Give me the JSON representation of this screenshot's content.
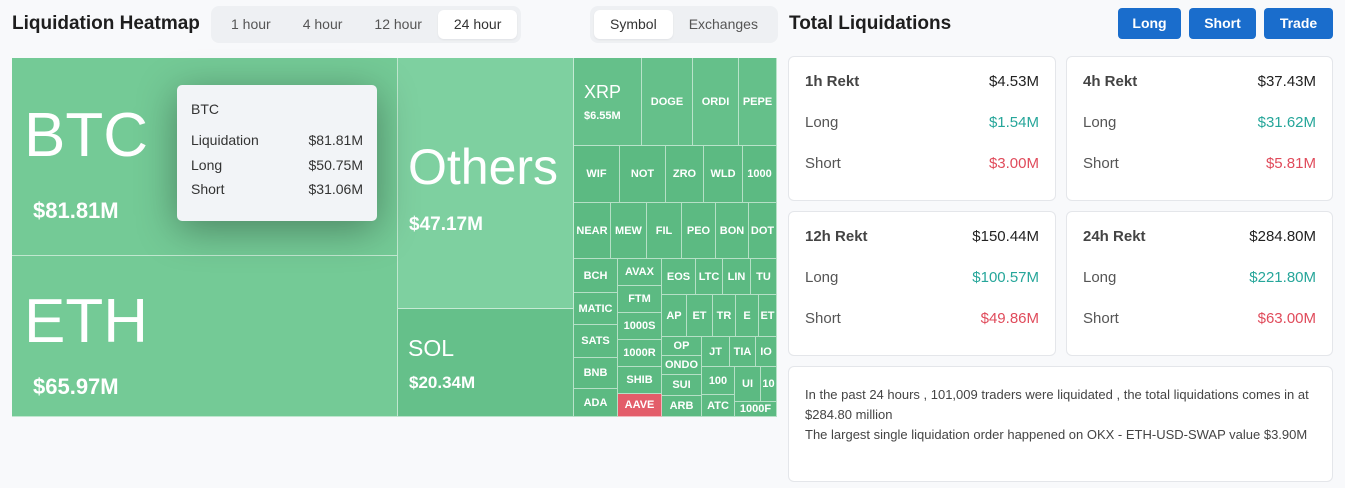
{
  "header": {
    "title": "Liquidation Heatmap",
    "time_options": [
      "1 hour",
      "4 hour",
      "12 hour",
      "24 hour"
    ],
    "active_time": "24 hour",
    "mode_options": [
      "Symbol",
      "Exchanges"
    ],
    "active_mode": "Symbol"
  },
  "heatmap": {
    "tiles": [
      {
        "name": "BTC",
        "value": "$81.81M"
      },
      {
        "name": "ETH",
        "value": "$65.97M"
      },
      {
        "name": "Others",
        "value": "$47.17M"
      },
      {
        "name": "SOL",
        "value": "$20.34M"
      },
      {
        "name": "XRP",
        "value": "$6.55M"
      },
      {
        "name": "DOGE"
      },
      {
        "name": "ORDI"
      },
      {
        "name": "PEPE"
      },
      {
        "name": "WIF"
      },
      {
        "name": "NOT"
      },
      {
        "name": "ZRO"
      },
      {
        "name": "WLD"
      },
      {
        "name": "1000"
      },
      {
        "name": "NEAR"
      },
      {
        "name": "MEW"
      },
      {
        "name": "FIL"
      },
      {
        "name": "PEO"
      },
      {
        "name": "BON"
      },
      {
        "name": "DOT"
      },
      {
        "name": "BCH"
      },
      {
        "name": "AVAX"
      },
      {
        "name": "EOS"
      },
      {
        "name": "LTC"
      },
      {
        "name": "LIN"
      },
      {
        "name": "TU"
      },
      {
        "name": "MATIC"
      },
      {
        "name": "FTM"
      },
      {
        "name": "AP"
      },
      {
        "name": "ET"
      },
      {
        "name": "TR"
      },
      {
        "name": "E"
      },
      {
        "name": "ET"
      },
      {
        "name": "1000S"
      },
      {
        "name": "SATS"
      },
      {
        "name": "1000R"
      },
      {
        "name": "OP"
      },
      {
        "name": "JT"
      },
      {
        "name": "TIA"
      },
      {
        "name": "IO"
      },
      {
        "name": "ONDO"
      },
      {
        "name": "BNB"
      },
      {
        "name": "SHIB"
      },
      {
        "name": "SUI"
      },
      {
        "name": "100"
      },
      {
        "name": "UI"
      },
      {
        "name": "10"
      },
      {
        "name": "ADA"
      },
      {
        "name": "AAVE"
      },
      {
        "name": "ARB"
      },
      {
        "name": "ATC"
      },
      {
        "name": "1000F"
      }
    ],
    "tooltip": {
      "title": "BTC",
      "rows": [
        {
          "label": "Liquidation",
          "value": "$81.81M"
        },
        {
          "label": "Long",
          "value": "$50.75M"
        },
        {
          "label": "Short",
          "value": "$31.06M"
        }
      ]
    }
  },
  "totals": {
    "title": "Total Liquidations",
    "buttons": [
      "Long",
      "Short",
      "Trade"
    ],
    "cards": [
      {
        "label": "1h Rekt",
        "total": "$4.53M",
        "long_label": "Long",
        "long": "$1.54M",
        "short_label": "Short",
        "short": "$3.00M"
      },
      {
        "label": "4h Rekt",
        "total": "$37.43M",
        "long_label": "Long",
        "long": "$31.62M",
        "short_label": "Short",
        "short": "$5.81M"
      },
      {
        "label": "12h Rekt",
        "total": "$150.44M",
        "long_label": "Long",
        "long": "$100.57M",
        "short_label": "Short",
        "short": "$49.86M"
      },
      {
        "label": "24h Rekt",
        "total": "$284.80M",
        "long_label": "Long",
        "long": "$221.80M",
        "short_label": "Short",
        "short": "$63.00M"
      }
    ],
    "summary_line1": "In the past 24 hours , 101,009 traders were liquidated , the total liquidations comes in at $284.80 million",
    "summary_line2": "The largest single liquidation order happened on OKX - ETH-USD-SWAP value $3.90M"
  },
  "colors": {
    "accent": "#1a6dcc",
    "tile_green": "#6cc690",
    "tile_red": "#e35d6a",
    "long": "#26a69a",
    "short": "#e04b5b"
  }
}
